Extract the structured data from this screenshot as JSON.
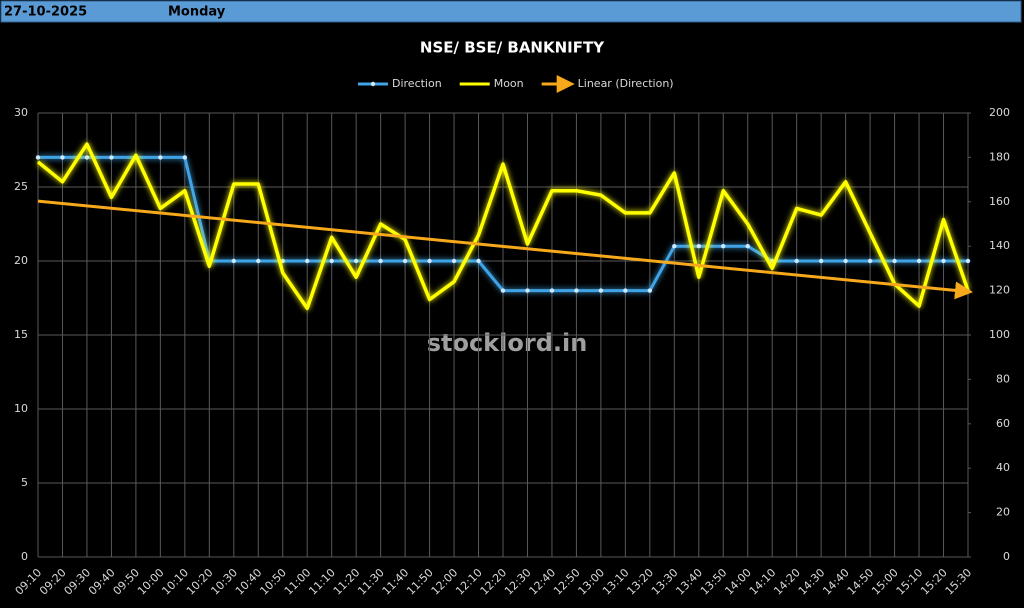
{
  "header": {
    "date": "27-10-2025",
    "day": "Monday"
  },
  "watermark": "stocklord.in",
  "chart_data": {
    "type": "line",
    "title": "NSE/ BSE/ BANKNIFTY",
    "categories": [
      "09:10",
      "09:20",
      "09:30",
      "09:40",
      "09:50",
      "10:00",
      "10:10",
      "10:20",
      "10:30",
      "10:40",
      "10:50",
      "11:00",
      "11:10",
      "11:20",
      "11:30",
      "11:40",
      "11:50",
      "12:00",
      "12:10",
      "12:20",
      "12:30",
      "12:40",
      "12:50",
      "13:00",
      "13:10",
      "13:20",
      "13:30",
      "13:40",
      "13:50",
      "14:00",
      "14:10",
      "14:20",
      "14:30",
      "14:40",
      "14:50",
      "15:00",
      "15:10",
      "15:20",
      "15:30"
    ],
    "series": [
      {
        "name": "Direction",
        "color": "#3fa3e6",
        "axis": "y",
        "values": [
          27,
          27,
          27,
          27,
          27,
          27,
          27,
          20,
          20,
          20,
          20,
          20,
          20,
          20,
          20,
          20,
          20,
          20,
          20,
          18,
          18,
          18,
          18,
          18,
          18,
          18,
          21,
          21,
          21,
          21,
          20,
          20,
          20,
          20,
          20,
          20,
          20,
          20,
          20
        ]
      },
      {
        "name": "Moon",
        "color": "#ffff00",
        "axis": "y2",
        "values": [
          178,
          169,
          186,
          162,
          181,
          157,
          165,
          131,
          168,
          168,
          128,
          112,
          144,
          126,
          150,
          143,
          116,
          124,
          145,
          177,
          141,
          165,
          165,
          163,
          155,
          155,
          173,
          126,
          165,
          150,
          130,
          157,
          154,
          169,
          146,
          123,
          113,
          152,
          120
        ]
      }
    ],
    "trendline": {
      "name": "Linear (Direction)",
      "series": 0,
      "color": "#f7a81b"
    },
    "ylim": [
      0,
      30
    ],
    "yticks": [
      0,
      5,
      10,
      15,
      20,
      25,
      30
    ],
    "y2lim": [
      0,
      200
    ],
    "y2ticks": [
      0,
      20,
      40,
      60,
      80,
      100,
      120,
      140,
      160,
      180,
      200
    ],
    "grid": true,
    "legend": "top"
  }
}
